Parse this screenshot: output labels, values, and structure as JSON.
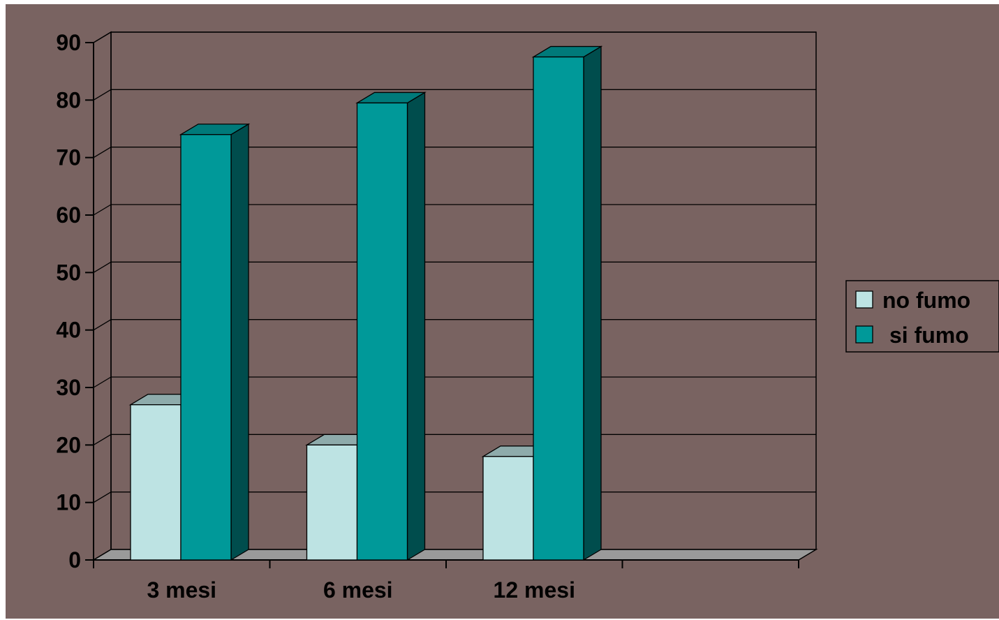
{
  "chart_data": {
    "type": "bar",
    "categories": [
      "3 mesi",
      "6 mesi",
      "12 mesi"
    ],
    "series": [
      {
        "name": "no fumo",
        "values": [
          27,
          20,
          18
        ],
        "color": "#BDE3E3",
        "side_color": "#7FA0A0",
        "top_color": "#8EABAB"
      },
      {
        "name": "si fumo",
        "values": [
          74,
          79.5,
          87.5
        ],
        "color": "#009999",
        "side_color": "#004D4D",
        "top_color": "#007A7A"
      }
    ],
    "ylim": [
      0,
      90
    ],
    "yticks": [
      0,
      10,
      20,
      30,
      40,
      50,
      60,
      70,
      80,
      90
    ],
    "category_slots": 4,
    "grid": true,
    "projection": "3d",
    "legend_position": "right",
    "background_color": "#796361",
    "floor_color": "#9A9A9A",
    "title": "",
    "xlabel": "",
    "ylabel": ""
  }
}
